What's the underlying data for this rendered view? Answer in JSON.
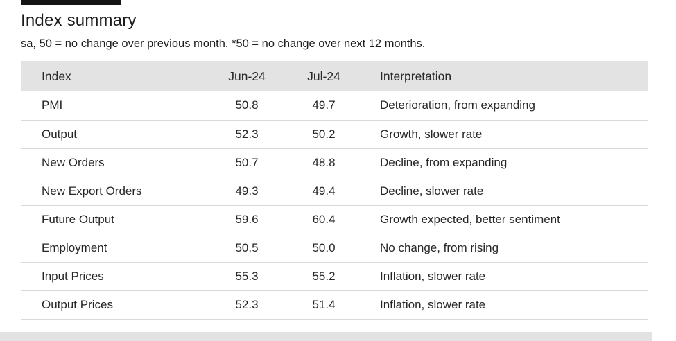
{
  "chart_data": {
    "type": "table",
    "title": "Index summary",
    "subtitle": "sa, 50 = no change over previous month. *50 = no change over next 12 months.",
    "columns": [
      "Index",
      "Jun-24",
      "Jul-24",
      "Interpretation"
    ],
    "rows": [
      [
        "PMI",
        "50.8",
        "49.7",
        "Deterioration, from expanding"
      ],
      [
        "Output",
        "52.3",
        "50.2",
        "Growth, slower rate"
      ],
      [
        "New Orders",
        "50.7",
        "48.8",
        "Decline, from expanding"
      ],
      [
        "New Export Orders",
        "49.3",
        "49.4",
        "Decline, slower rate"
      ],
      [
        "Future Output",
        "59.6",
        "60.4",
        "Growth expected, better sentiment"
      ],
      [
        "Employment",
        "50.5",
        "50.0",
        "No change, from rising"
      ],
      [
        "Input Prices",
        "55.3",
        "55.2",
        "Inflation, slower rate"
      ],
      [
        "Output Prices",
        "52.3",
        "51.4",
        "Inflation, slower rate"
      ]
    ],
    "header_bg_color": "#e3e3e3",
    "divider_color": "#d9d9d9",
    "text_color": "#262626"
  }
}
